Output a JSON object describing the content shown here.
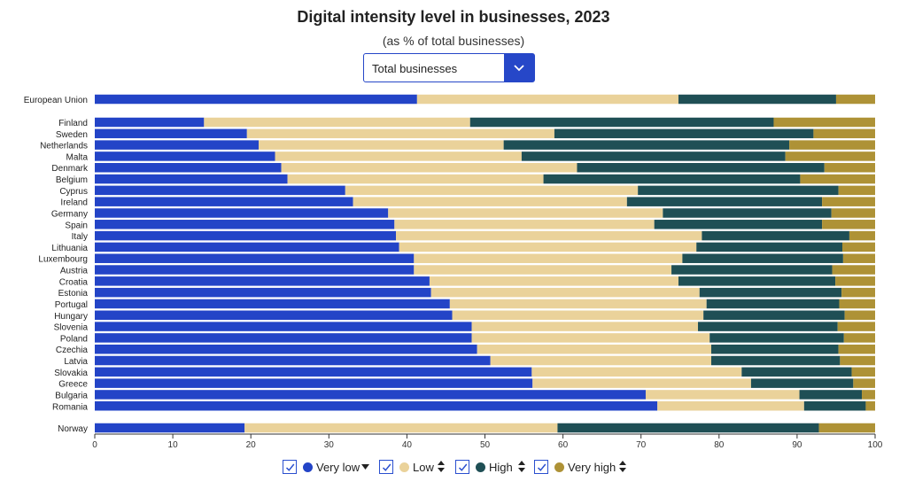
{
  "header": {
    "title": "Digital intensity level in businesses, 2023",
    "subtitle": "(as % of total businesses)"
  },
  "filter": {
    "selected": "Total businesses",
    "icon": "chevron-down-icon"
  },
  "colors": {
    "very_low": "#2344c7",
    "low": "#ead29a",
    "high": "#1f4f55",
    "very_high": "#ae9236",
    "accent": "#2647c8"
  },
  "chart_data": {
    "type": "bar",
    "orientation": "horizontal",
    "stacked": true,
    "title": "Digital intensity level in businesses, 2023",
    "subtitle": "(as % of total businesses)",
    "xlim": [
      0,
      100
    ],
    "x_ticks": [
      "0",
      "10",
      "20",
      "30",
      "40",
      "50",
      "60",
      "70",
      "80",
      "90",
      "100"
    ],
    "grid": false,
    "legend_position": "bottom",
    "categories": [
      "European Union",
      "Finland",
      "Sweden",
      "Netherlands",
      "Malta",
      "Denmark",
      "Belgium",
      "Cyprus",
      "Ireland",
      "Germany",
      "Spain",
      "Italy",
      "Lithuania",
      "Luxembourg",
      "Austria",
      "Croatia",
      "Estonia",
      "Portugal",
      "Hungary",
      "Slovenia",
      "Poland",
      "Czechia",
      "Latvia",
      "Slovakia",
      "Greece",
      "Bulgaria",
      "Romania",
      "Norway"
    ],
    "series": [
      {
        "name": "Very low",
        "key": "very_low",
        "values": [
          41.3,
          14.0,
          19.5,
          21.0,
          23.1,
          23.9,
          24.7,
          32.1,
          33.1,
          37.6,
          38.4,
          38.6,
          39.0,
          40.9,
          40.9,
          42.9,
          43.1,
          45.5,
          45.8,
          48.3,
          48.3,
          49.0,
          50.7,
          56.0,
          56.1,
          70.6,
          72.1,
          19.2
        ]
      },
      {
        "name": "Low",
        "key": "low",
        "values": [
          33.5,
          34.1,
          39.4,
          31.4,
          31.6,
          37.9,
          32.8,
          37.5,
          35.1,
          35.2,
          33.3,
          39.2,
          38.1,
          34.4,
          33.0,
          31.9,
          34.4,
          32.9,
          32.2,
          29.0,
          30.5,
          30.0,
          28.3,
          26.9,
          28.0,
          19.7,
          18.8,
          40.1
        ]
      },
      {
        "name": "High",
        "key": "high",
        "values": [
          20.2,
          38.9,
          33.2,
          36.6,
          33.8,
          31.7,
          32.9,
          25.7,
          25.0,
          21.6,
          21.5,
          18.9,
          18.7,
          20.6,
          20.6,
          20.1,
          18.2,
          17.0,
          18.1,
          17.9,
          17.2,
          16.3,
          16.5,
          14.1,
          13.1,
          8.0,
          7.9,
          33.5
        ]
      },
      {
        "name": "Very high",
        "key": "very_high",
        "values": [
          5.0,
          13.0,
          7.9,
          11.0,
          11.5,
          6.5,
          9.6,
          4.7,
          6.8,
          5.6,
          6.8,
          3.3,
          4.2,
          4.1,
          5.5,
          5.1,
          4.3,
          4.6,
          3.9,
          4.8,
          4.0,
          4.7,
          4.5,
          3.0,
          2.8,
          1.7,
          1.2,
          7.2
        ]
      }
    ]
  },
  "legend": [
    {
      "label": "Very low",
      "checked": true,
      "sort_icon": "sort-descending-icon"
    },
    {
      "label": "Low",
      "checked": true,
      "sort_icon": "sort-icon"
    },
    {
      "label": "High",
      "checked": true,
      "sort_icon": "sort-icon"
    },
    {
      "label": "Very high",
      "checked": true,
      "sort_icon": "sort-icon"
    }
  ]
}
